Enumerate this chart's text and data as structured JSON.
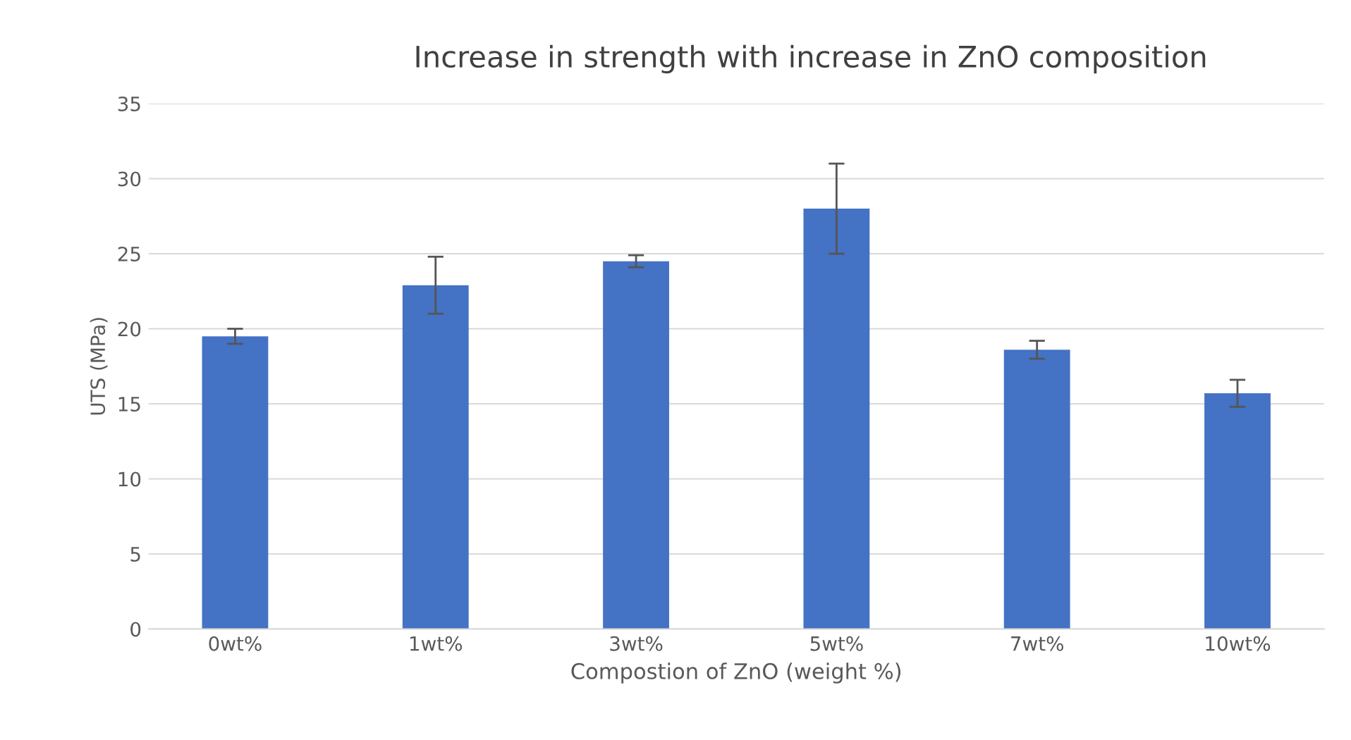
{
  "chart_data": {
    "type": "bar",
    "title": "Increase in strength with increase in ZnO composition",
    "xlabel": "Compostion of ZnO (weight %)",
    "ylabel": "UTS (MPa)",
    "categories": [
      "0wt%",
      "1wt%",
      "3wt%",
      "5wt%",
      "7wt%",
      "10wt%"
    ],
    "values": [
      19.5,
      22.9,
      24.5,
      28,
      18.6,
      15.7
    ],
    "errors": [
      0.5,
      1.9,
      0.4,
      3,
      0.6,
      0.9
    ],
    "color": "#4472c4",
    "ylim": [
      0,
      35
    ],
    "yticks": [
      0,
      5,
      10,
      15,
      20,
      25,
      30,
      35
    ],
    "grid": "y"
  }
}
